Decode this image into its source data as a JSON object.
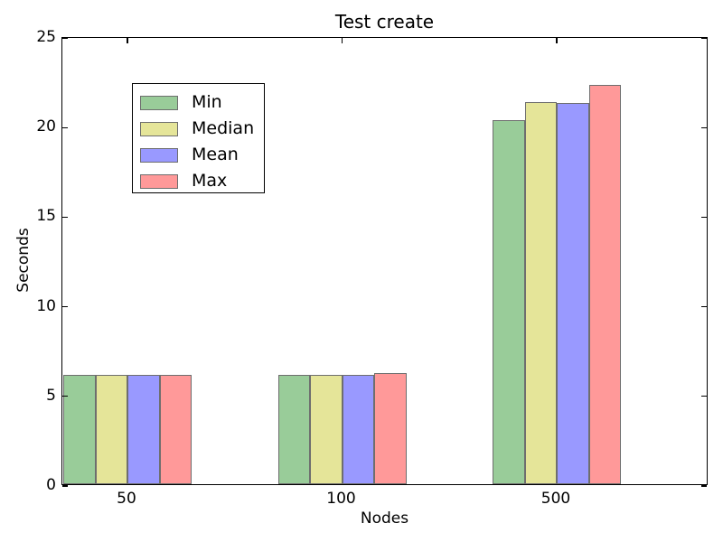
{
  "chart_data": {
    "type": "bar",
    "title": "Test create",
    "xlabel": "Nodes",
    "ylabel": "Seconds",
    "categories": [
      "50",
      "100",
      "500"
    ],
    "series": [
      {
        "name": "Min",
        "color": "#99cc99",
        "values": [
          6.1,
          6.1,
          20.3
        ]
      },
      {
        "name": "Median",
        "color": "#e5e599",
        "values": [
          6.1,
          6.1,
          21.3
        ]
      },
      {
        "name": "Mean",
        "color": "#9999ff",
        "values": [
          6.1,
          6.1,
          21.25
        ]
      },
      {
        "name": "Max",
        "color": "#ff9999",
        "values": [
          6.1,
          6.2,
          22.3
        ]
      }
    ],
    "ylim": [
      0,
      25
    ],
    "yticks": [
      0,
      5,
      10,
      15,
      20,
      25
    ],
    "legend_position": "upper left",
    "legend_labels": [
      "Min",
      "Median",
      "Mean",
      "Max"
    ],
    "bar_edge_color": "#6e6e6e",
    "axis_color": "#000000",
    "grid": false
  }
}
